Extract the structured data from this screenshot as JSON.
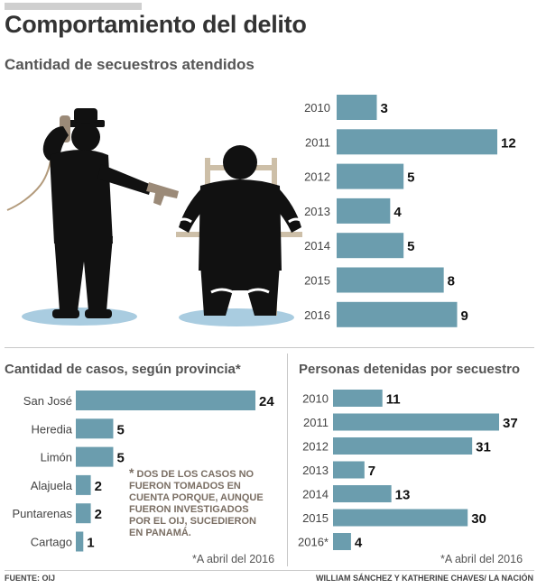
{
  "header": {
    "title": "Comportamiento del delito",
    "subtitle": "Cantidad de secuestros atendidos"
  },
  "colors": {
    "bar": "#6b9dae",
    "shadow": "#a9cce0",
    "figure": "#111111",
    "chair": "#cdbfa8"
  },
  "chart_data": [
    {
      "type": "bar",
      "orientation": "horizontal",
      "title": "Cantidad de secuestros atendidos",
      "categories": [
        "2010",
        "2011",
        "2012",
        "2013",
        "2014",
        "2015",
        "2016"
      ],
      "values": [
        3,
        12,
        5,
        4,
        5,
        8,
        9
      ],
      "xlim": [
        0,
        12
      ]
    },
    {
      "type": "bar",
      "orientation": "horizontal",
      "title": "Cantidad de casos, según provincia*",
      "categories": [
        "San José",
        "Heredia",
        "Limón",
        "Alajuela",
        "Puntarenas",
        "Cartago"
      ],
      "values": [
        24,
        5,
        5,
        2,
        2,
        1
      ],
      "xlim": [
        0,
        24
      ]
    },
    {
      "type": "bar",
      "orientation": "horizontal",
      "title": "Personas detenidas por secuestro",
      "categories": [
        "2010",
        "2011",
        "2012",
        "2013",
        "2014",
        "2015",
        "2016*"
      ],
      "values": [
        11,
        37,
        31,
        7,
        13,
        30,
        4
      ],
      "xlim": [
        0,
        37
      ]
    }
  ],
  "provincias": {
    "title": "Cantidad de casos, según provincia*",
    "note_star": "*",
    "note": "Dos de los casos no fueron tomados en cuenta porque, aunque fueron investigados por el OIJ, sucedieron en Panamá.",
    "footnote": "*A abril del 2016"
  },
  "detenidas": {
    "title": "Personas detenidas por secuestro",
    "footnote": "*A abril del 2016"
  },
  "footer": {
    "source": "FUENTE: OIJ",
    "credits": "WILLIAM SÁNCHEZ Y KATHERINE CHAVES/ LA NACIÓN"
  }
}
